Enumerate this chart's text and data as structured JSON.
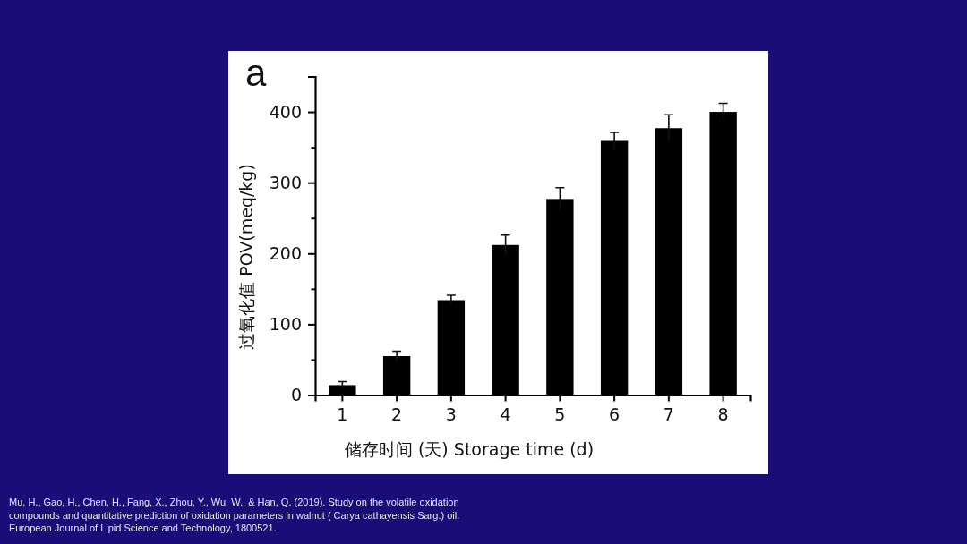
{
  "chart_data": {
    "type": "bar",
    "title": "a",
    "xlabel": "储存时间 (天) Storage time (d)",
    "ylabel": "过氧化值 POV(meq/kg)",
    "categories": [
      "1",
      "2",
      "3",
      "4",
      "5",
      "6",
      "7",
      "8"
    ],
    "values": [
      14,
      55,
      134,
      212,
      277,
      359,
      377,
      400
    ],
    "errors": [
      5,
      7,
      7,
      14,
      16,
      12,
      19,
      12
    ],
    "color": "#000000",
    "ylim": [
      0,
      450
    ],
    "yticks": [
      0,
      {
        "value": 50,
        "label": null
      },
      100,
      {
        "value": 150,
        "label": null
      },
      200,
      {
        "value": 250,
        "label": null
      },
      300,
      {
        "value": 350,
        "label": null
      },
      400,
      {
        "value": 450,
        "label": null
      }
    ],
    "annotations": [
      "Mu, H., Gao, H., Chen, H., Fang, X., Zhou, Y., Wu, W., & Han, Q. (2019). Study on the volatile oxidation compounds and quantitative prediction of oxidation parameters in walnut ( Carya cathayensis Sarg.) oil. European Journal of Lipid Science and Technology, 1800521."
    ]
  }
}
